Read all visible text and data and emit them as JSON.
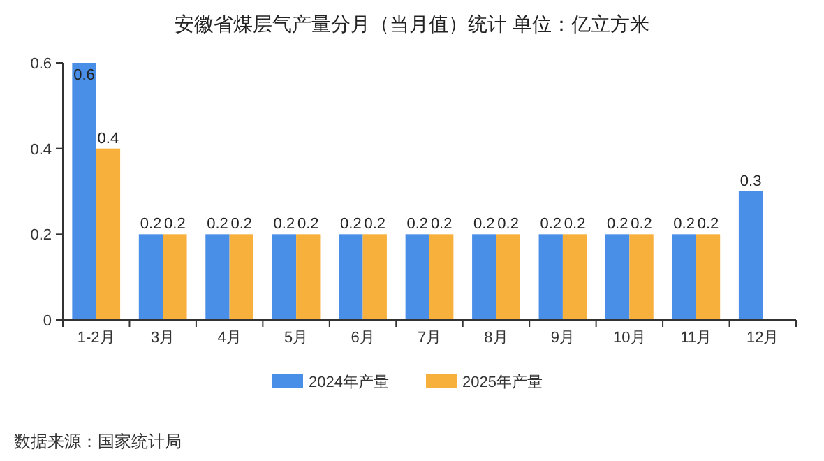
{
  "chart_data": {
    "type": "bar",
    "title": "安徽省煤层气产量分月（当月值）统计 单位：亿立方米",
    "categories": [
      "1-2月",
      "3月",
      "4月",
      "5月",
      "6月",
      "7月",
      "8月",
      "9月",
      "10月",
      "11月",
      "12月"
    ],
    "series": [
      {
        "name": "2024年产量",
        "color": "#4a8fe7",
        "values": [
          0.6,
          0.2,
          0.2,
          0.2,
          0.2,
          0.2,
          0.2,
          0.2,
          0.2,
          0.2,
          0.3
        ]
      },
      {
        "name": "2025年产量",
        "color": "#f8b03c",
        "values": [
          0.4,
          0.2,
          0.2,
          0.2,
          0.2,
          0.2,
          0.2,
          0.2,
          0.2,
          0.2,
          null
        ]
      }
    ],
    "ylim": [
      0,
      0.6
    ],
    "yticks": [
      0,
      0.2,
      0.4,
      0.6
    ],
    "data_labels": true,
    "legend": "bottom",
    "grid": false,
    "annotations": [
      "数据来源：国家统计局"
    ]
  }
}
